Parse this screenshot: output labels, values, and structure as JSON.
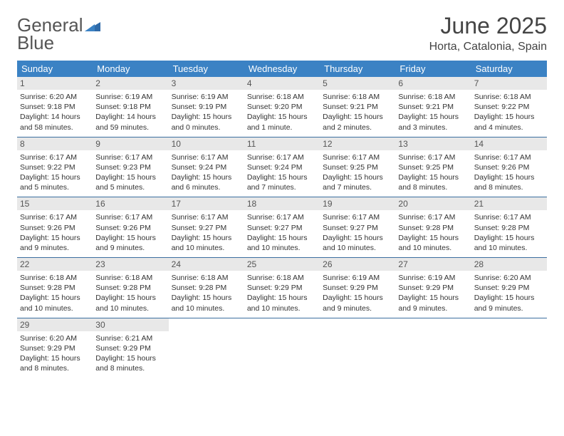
{
  "logo": {
    "word1": "General",
    "word2": "Blue"
  },
  "title": "June 2025",
  "location": "Horta, Catalonia, Spain",
  "colors": {
    "header_bg": "#3b82c4",
    "header_text": "#ffffff",
    "daynum_bg": "#e8e8e8",
    "week_border": "#3b6fa0",
    "body_text": "#333333",
    "logo_gray": "#555555",
    "logo_blue": "#3b82c4"
  },
  "weekdays": [
    "Sunday",
    "Monday",
    "Tuesday",
    "Wednesday",
    "Thursday",
    "Friday",
    "Saturday"
  ],
  "days": [
    {
      "n": 1,
      "sr": "6:20 AM",
      "ss": "9:18 PM",
      "dl": "14 hours and 58 minutes."
    },
    {
      "n": 2,
      "sr": "6:19 AM",
      "ss": "9:18 PM",
      "dl": "14 hours and 59 minutes."
    },
    {
      "n": 3,
      "sr": "6:19 AM",
      "ss": "9:19 PM",
      "dl": "15 hours and 0 minutes."
    },
    {
      "n": 4,
      "sr": "6:18 AM",
      "ss": "9:20 PM",
      "dl": "15 hours and 1 minute."
    },
    {
      "n": 5,
      "sr": "6:18 AM",
      "ss": "9:21 PM",
      "dl": "15 hours and 2 minutes."
    },
    {
      "n": 6,
      "sr": "6:18 AM",
      "ss": "9:21 PM",
      "dl": "15 hours and 3 minutes."
    },
    {
      "n": 7,
      "sr": "6:18 AM",
      "ss": "9:22 PM",
      "dl": "15 hours and 4 minutes."
    },
    {
      "n": 8,
      "sr": "6:17 AM",
      "ss": "9:22 PM",
      "dl": "15 hours and 5 minutes."
    },
    {
      "n": 9,
      "sr": "6:17 AM",
      "ss": "9:23 PM",
      "dl": "15 hours and 5 minutes."
    },
    {
      "n": 10,
      "sr": "6:17 AM",
      "ss": "9:24 PM",
      "dl": "15 hours and 6 minutes."
    },
    {
      "n": 11,
      "sr": "6:17 AM",
      "ss": "9:24 PM",
      "dl": "15 hours and 7 minutes."
    },
    {
      "n": 12,
      "sr": "6:17 AM",
      "ss": "9:25 PM",
      "dl": "15 hours and 7 minutes."
    },
    {
      "n": 13,
      "sr": "6:17 AM",
      "ss": "9:25 PM",
      "dl": "15 hours and 8 minutes."
    },
    {
      "n": 14,
      "sr": "6:17 AM",
      "ss": "9:26 PM",
      "dl": "15 hours and 8 minutes."
    },
    {
      "n": 15,
      "sr": "6:17 AM",
      "ss": "9:26 PM",
      "dl": "15 hours and 9 minutes."
    },
    {
      "n": 16,
      "sr": "6:17 AM",
      "ss": "9:26 PM",
      "dl": "15 hours and 9 minutes."
    },
    {
      "n": 17,
      "sr": "6:17 AM",
      "ss": "9:27 PM",
      "dl": "15 hours and 10 minutes."
    },
    {
      "n": 18,
      "sr": "6:17 AM",
      "ss": "9:27 PM",
      "dl": "15 hours and 10 minutes."
    },
    {
      "n": 19,
      "sr": "6:17 AM",
      "ss": "9:27 PM",
      "dl": "15 hours and 10 minutes."
    },
    {
      "n": 20,
      "sr": "6:17 AM",
      "ss": "9:28 PM",
      "dl": "15 hours and 10 minutes."
    },
    {
      "n": 21,
      "sr": "6:17 AM",
      "ss": "9:28 PM",
      "dl": "15 hours and 10 minutes."
    },
    {
      "n": 22,
      "sr": "6:18 AM",
      "ss": "9:28 PM",
      "dl": "15 hours and 10 minutes."
    },
    {
      "n": 23,
      "sr": "6:18 AM",
      "ss": "9:28 PM",
      "dl": "15 hours and 10 minutes."
    },
    {
      "n": 24,
      "sr": "6:18 AM",
      "ss": "9:28 PM",
      "dl": "15 hours and 10 minutes."
    },
    {
      "n": 25,
      "sr": "6:18 AM",
      "ss": "9:29 PM",
      "dl": "15 hours and 10 minutes."
    },
    {
      "n": 26,
      "sr": "6:19 AM",
      "ss": "9:29 PM",
      "dl": "15 hours and 9 minutes."
    },
    {
      "n": 27,
      "sr": "6:19 AM",
      "ss": "9:29 PM",
      "dl": "15 hours and 9 minutes."
    },
    {
      "n": 28,
      "sr": "6:20 AM",
      "ss": "9:29 PM",
      "dl": "15 hours and 9 minutes."
    },
    {
      "n": 29,
      "sr": "6:20 AM",
      "ss": "9:29 PM",
      "dl": "15 hours and 8 minutes."
    },
    {
      "n": 30,
      "sr": "6:21 AM",
      "ss": "9:29 PM",
      "dl": "15 hours and 8 minutes."
    }
  ],
  "labels": {
    "sunrise": "Sunrise:",
    "sunset": "Sunset:",
    "daylight": "Daylight:"
  }
}
